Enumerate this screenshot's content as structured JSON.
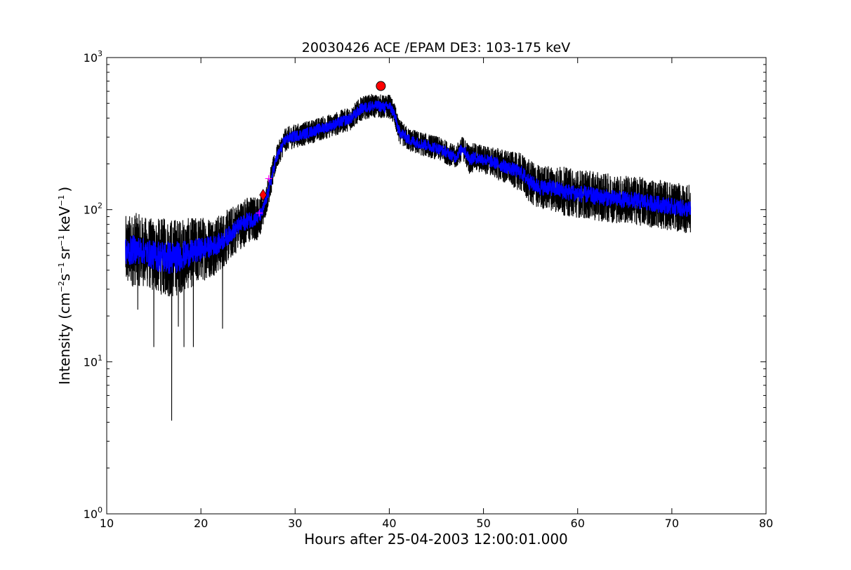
{
  "chart_data": {
    "type": "line",
    "title": "20030426 ACE /EPAM DE3: 103-175 keV",
    "xlabel": "Hours after 25-04-2003 12:00:01.000",
    "ylabel_parts": {
      "prefix": "Intensity (cm",
      "exp1": "−2",
      "mid1": "s",
      "exp2": "−1",
      "mid2": "sr",
      "exp3": "−1",
      "mid3": "keV",
      "exp4": "−1",
      "suffix": ")"
    },
    "xlim": [
      10,
      80
    ],
    "ylim": [
      1,
      1000
    ],
    "yscale": "log",
    "grid": false,
    "x_ticks": [
      10,
      20,
      30,
      40,
      50,
      60,
      70,
      80
    ],
    "x_tick_labels": [
      "10",
      "20",
      "30",
      "40",
      "50",
      "60",
      "70",
      "80"
    ],
    "y_ticks": [
      1,
      10,
      100,
      1000
    ],
    "y_tick_labels": [
      {
        "base": "10",
        "exp": "0"
      },
      {
        "base": "10",
        "exp": "1"
      },
      {
        "base": "10",
        "exp": "2"
      },
      {
        "base": "10",
        "exp": "3"
      }
    ],
    "series": [
      {
        "color": "#000000",
        "role": "raw",
        "x": [
          12,
          13,
          14,
          15,
          16,
          17,
          18,
          19,
          20,
          21,
          22,
          23,
          24,
          25,
          26,
          26.5,
          27,
          27.5,
          28,
          29,
          30,
          31,
          32,
          33,
          34,
          35,
          36,
          37,
          38,
          39,
          39.5,
          40,
          40.5,
          41,
          42,
          43,
          44,
          45,
          46,
          47,
          47.8,
          48.5,
          49,
          50,
          51,
          52,
          53,
          54,
          55,
          56,
          57,
          58,
          59,
          60,
          62,
          64,
          66,
          68,
          70,
          72
        ],
        "y": [
          52,
          55,
          53,
          50,
          49,
          48,
          50,
          52,
          55,
          57,
          60,
          68,
          78,
          85,
          88,
          95,
          120,
          160,
          215,
          290,
          305,
          315,
          330,
          345,
          360,
          380,
          400,
          460,
          480,
          480,
          470,
          480,
          430,
          330,
          290,
          275,
          265,
          255,
          240,
          220,
          255,
          215,
          220,
          215,
          205,
          195,
          185,
          175,
          150,
          140,
          140,
          135,
          130,
          128,
          122,
          118,
          115,
          110,
          105,
          100
        ],
        "spread": [
          1.75,
          1.75,
          1.7,
          1.75,
          1.8,
          1.85,
          1.75,
          1.7,
          1.65,
          1.6,
          1.55,
          1.5,
          1.45,
          1.45,
          1.4,
          1.3,
          1.25,
          1.25,
          1.2,
          1.2,
          1.2,
          1.2,
          1.2,
          1.2,
          1.2,
          1.2,
          1.2,
          1.2,
          1.2,
          1.2,
          1.2,
          1.2,
          1.2,
          1.2,
          1.2,
          1.2,
          1.2,
          1.2,
          1.2,
          1.2,
          1.2,
          1.25,
          1.25,
          1.25,
          1.25,
          1.3,
          1.3,
          1.35,
          1.4,
          1.4,
          1.4,
          1.45,
          1.45,
          1.45,
          1.45,
          1.45,
          1.45,
          1.45,
          1.45,
          1.45
        ],
        "dips": [
          [
            15,
            12.5
          ],
          [
            16.9,
            4.1
          ],
          [
            18.2,
            12.5
          ],
          [
            19.2,
            12.5
          ],
          [
            22.3,
            16.5
          ],
          [
            17.6,
            17
          ],
          [
            13.3,
            22
          ]
        ]
      },
      {
        "color": "#0000ff",
        "role": "smoothed",
        "x": [
          12,
          13,
          14,
          15,
          16,
          17,
          18,
          19,
          20,
          21,
          22,
          23,
          24,
          25,
          26,
          26.5,
          27,
          27.5,
          28,
          29,
          30,
          31,
          32,
          33,
          34,
          35,
          36,
          37,
          38,
          39,
          39.5,
          40,
          40.5,
          41,
          42,
          43,
          44,
          45,
          46,
          47,
          47.8,
          48.5,
          49,
          50,
          51,
          52,
          53,
          54,
          55,
          56,
          57,
          58,
          59,
          60,
          62,
          64,
          66,
          68,
          70,
          72
        ],
        "y": [
          52,
          55,
          53,
          50,
          49,
          48,
          50,
          52,
          55,
          57,
          60,
          68,
          78,
          85,
          88,
          95,
          120,
          160,
          215,
          290,
          305,
          315,
          330,
          345,
          360,
          380,
          400,
          460,
          480,
          480,
          470,
          480,
          430,
          330,
          290,
          275,
          265,
          255,
          240,
          220,
          255,
          215,
          220,
          215,
          205,
          195,
          185,
          175,
          150,
          140,
          140,
          135,
          130,
          128,
          122,
          118,
          115,
          110,
          105,
          100
        ],
        "spread": [
          1.25,
          1.25,
          1.22,
          1.25,
          1.3,
          1.3,
          1.25,
          1.22,
          1.2,
          1.18,
          1.16,
          1.15,
          1.14,
          1.14,
          1.12,
          1.1,
          1.1,
          1.1,
          1.09,
          1.09,
          1.09,
          1.09,
          1.09,
          1.09,
          1.09,
          1.09,
          1.09,
          1.09,
          1.09,
          1.09,
          1.09,
          1.09,
          1.09,
          1.09,
          1.09,
          1.09,
          1.09,
          1.09,
          1.09,
          1.09,
          1.09,
          1.1,
          1.1,
          1.1,
          1.1,
          1.11,
          1.11,
          1.12,
          1.13,
          1.13,
          1.13,
          1.14,
          1.14,
          1.14,
          1.14,
          1.14,
          1.14,
          1.14,
          1.14,
          1.14
        ]
      }
    ],
    "markers": [
      {
        "shape": "circle",
        "x": 39.1,
        "y": 650,
        "color": "#ff0000"
      },
      {
        "shape": "diamond",
        "x": 26.6,
        "y": 125,
        "color": "#ff0000"
      },
      {
        "shape": "plus",
        "x": 26.2,
        "y": 95,
        "color": "#ff00ff"
      },
      {
        "shape": "plus",
        "x": 27.2,
        "y": 160,
        "color": "#ff00ff"
      }
    ]
  }
}
